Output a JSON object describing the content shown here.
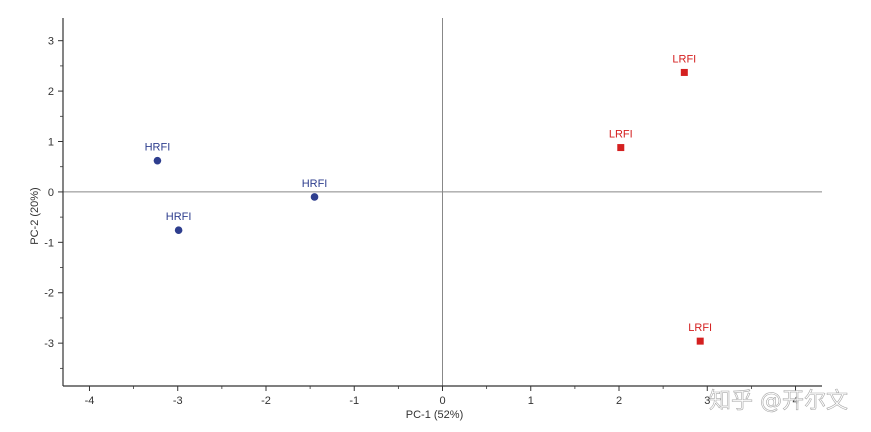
{
  "chart_data": {
    "type": "scatter",
    "title": "",
    "xlabel": "PC-1 (52%)",
    "ylabel": "PC-2 (20%)",
    "xlim": [
      -4.3,
      4.3
    ],
    "ylim": [
      -3.85,
      3.45
    ],
    "xticks": [
      -4,
      -3,
      -2,
      -1,
      0,
      1,
      2,
      3,
      4
    ],
    "yticks": [
      -3,
      -2,
      -1,
      0,
      1,
      2,
      3
    ],
    "grid": false,
    "zero_lines": true,
    "series": [
      {
        "color": "#2e3e8e",
        "marker": "circle",
        "points": [
          {
            "x": -3.23,
            "y": 0.62,
            "label": "HRFI"
          },
          {
            "x": -2.99,
            "y": -0.76,
            "label": "HRFI"
          },
          {
            "x": -1.45,
            "y": -0.1,
            "label": "HRFI"
          }
        ]
      },
      {
        "color": "#d42020",
        "marker": "square",
        "points": [
          {
            "x": 2.02,
            "y": 0.88,
            "label": "LRFI"
          },
          {
            "x": 2.74,
            "y": 2.37,
            "label": "LRFI"
          },
          {
            "x": 2.92,
            "y": -2.96,
            "label": "LRFI"
          }
        ]
      }
    ]
  },
  "watermark": {
    "text": "知乎 @开尔文"
  }
}
